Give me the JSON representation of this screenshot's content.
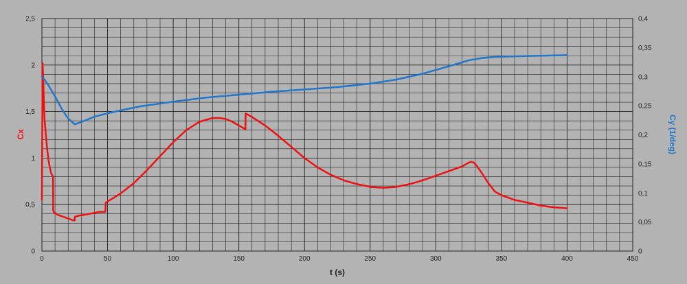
{
  "chart_data": {
    "type": "line",
    "title": "",
    "xlabel": "t (s)",
    "ylabel_left": "Cx",
    "ylabel_right": "Cy (1/deg)",
    "xlim": [
      0,
      450
    ],
    "ylim_left": [
      0,
      2.5
    ],
    "ylim_right": [
      0,
      0.4
    ],
    "x_ticks": [
      0,
      50,
      100,
      150,
      200,
      250,
      300,
      350,
      400,
      450
    ],
    "x_tick_labels": [
      "0",
      "50",
      "100",
      "150",
      "200",
      "250",
      "300",
      "350",
      "400",
      "450"
    ],
    "y_left_ticks": [
      0,
      0.5,
      1,
      1.5,
      2,
      2.5
    ],
    "y_left_tick_labels": [
      "0",
      "0,5",
      "1",
      "1,5",
      "2",
      "2,5"
    ],
    "y_right_ticks": [
      0,
      0.05,
      0.1,
      0.15,
      0.2,
      0.25,
      0.3,
      0.35,
      0.4
    ],
    "y_right_tick_labels": [
      "0",
      "0,05",
      "0,1",
      "0,15",
      "0,2",
      "0,25",
      "0,3",
      "0,35",
      "0,4"
    ],
    "grid": true,
    "legend": "none",
    "colors": {
      "cx": "#ee1111",
      "cy": "#2277cc",
      "background": "#b3b3b3",
      "grid": "#222222"
    },
    "series": [
      {
        "axis": "left",
        "color": "#ee1111",
        "x": [
          0,
          0.5,
          1,
          1.5,
          2,
          3,
          4,
          5,
          6,
          7,
          8,
          8.5,
          8.6,
          9,
          12,
          16,
          20,
          24,
          25,
          25.2,
          28,
          32,
          36,
          40,
          44,
          48,
          48.4,
          48.6,
          52,
          60,
          70,
          80,
          90,
          100,
          110,
          120,
          130,
          135,
          140,
          145,
          150,
          155,
          155.2,
          160,
          170,
          180,
          190,
          200,
          210,
          220,
          230,
          240,
          250,
          260,
          270,
          280,
          290,
          300,
          310,
          320,
          325,
          327,
          329,
          331,
          333,
          336,
          340,
          345,
          350,
          360,
          370,
          380,
          390,
          400
        ],
        "y": [
          0.55,
          2.02,
          1.85,
          1.6,
          1.42,
          1.25,
          1.1,
          0.98,
          0.9,
          0.84,
          0.81,
          0.8,
          0.44,
          0.42,
          0.39,
          0.37,
          0.35,
          0.33,
          0.33,
          0.37,
          0.38,
          0.39,
          0.4,
          0.41,
          0.42,
          0.42,
          0.43,
          0.52,
          0.55,
          0.62,
          0.73,
          0.87,
          1.02,
          1.17,
          1.3,
          1.39,
          1.43,
          1.43,
          1.42,
          1.39,
          1.35,
          1.31,
          1.48,
          1.44,
          1.35,
          1.24,
          1.12,
          1.0,
          0.9,
          0.82,
          0.76,
          0.72,
          0.69,
          0.68,
          0.69,
          0.72,
          0.76,
          0.81,
          0.86,
          0.91,
          0.95,
          0.96,
          0.95,
          0.92,
          0.88,
          0.82,
          0.73,
          0.64,
          0.6,
          0.55,
          0.52,
          0.49,
          0.47,
          0.46
        ]
      },
      {
        "axis": "right",
        "color": "#2277cc",
        "x": [
          0,
          2,
          5,
          10,
          15,
          20,
          25,
          30,
          40,
          50,
          60,
          75,
          100,
          125,
          150,
          175,
          200,
          225,
          250,
          270,
          290,
          310,
          325,
          335,
          345,
          360,
          380,
          400
        ],
        "y": [
          0.3,
          0.295,
          0.285,
          0.266,
          0.245,
          0.228,
          0.218,
          0.222,
          0.231,
          0.237,
          0.242,
          0.249,
          0.257,
          0.264,
          0.269,
          0.274,
          0.278,
          0.282,
          0.288,
          0.295,
          0.305,
          0.318,
          0.328,
          0.332,
          0.334,
          0.335,
          0.336,
          0.337
        ]
      }
    ]
  }
}
